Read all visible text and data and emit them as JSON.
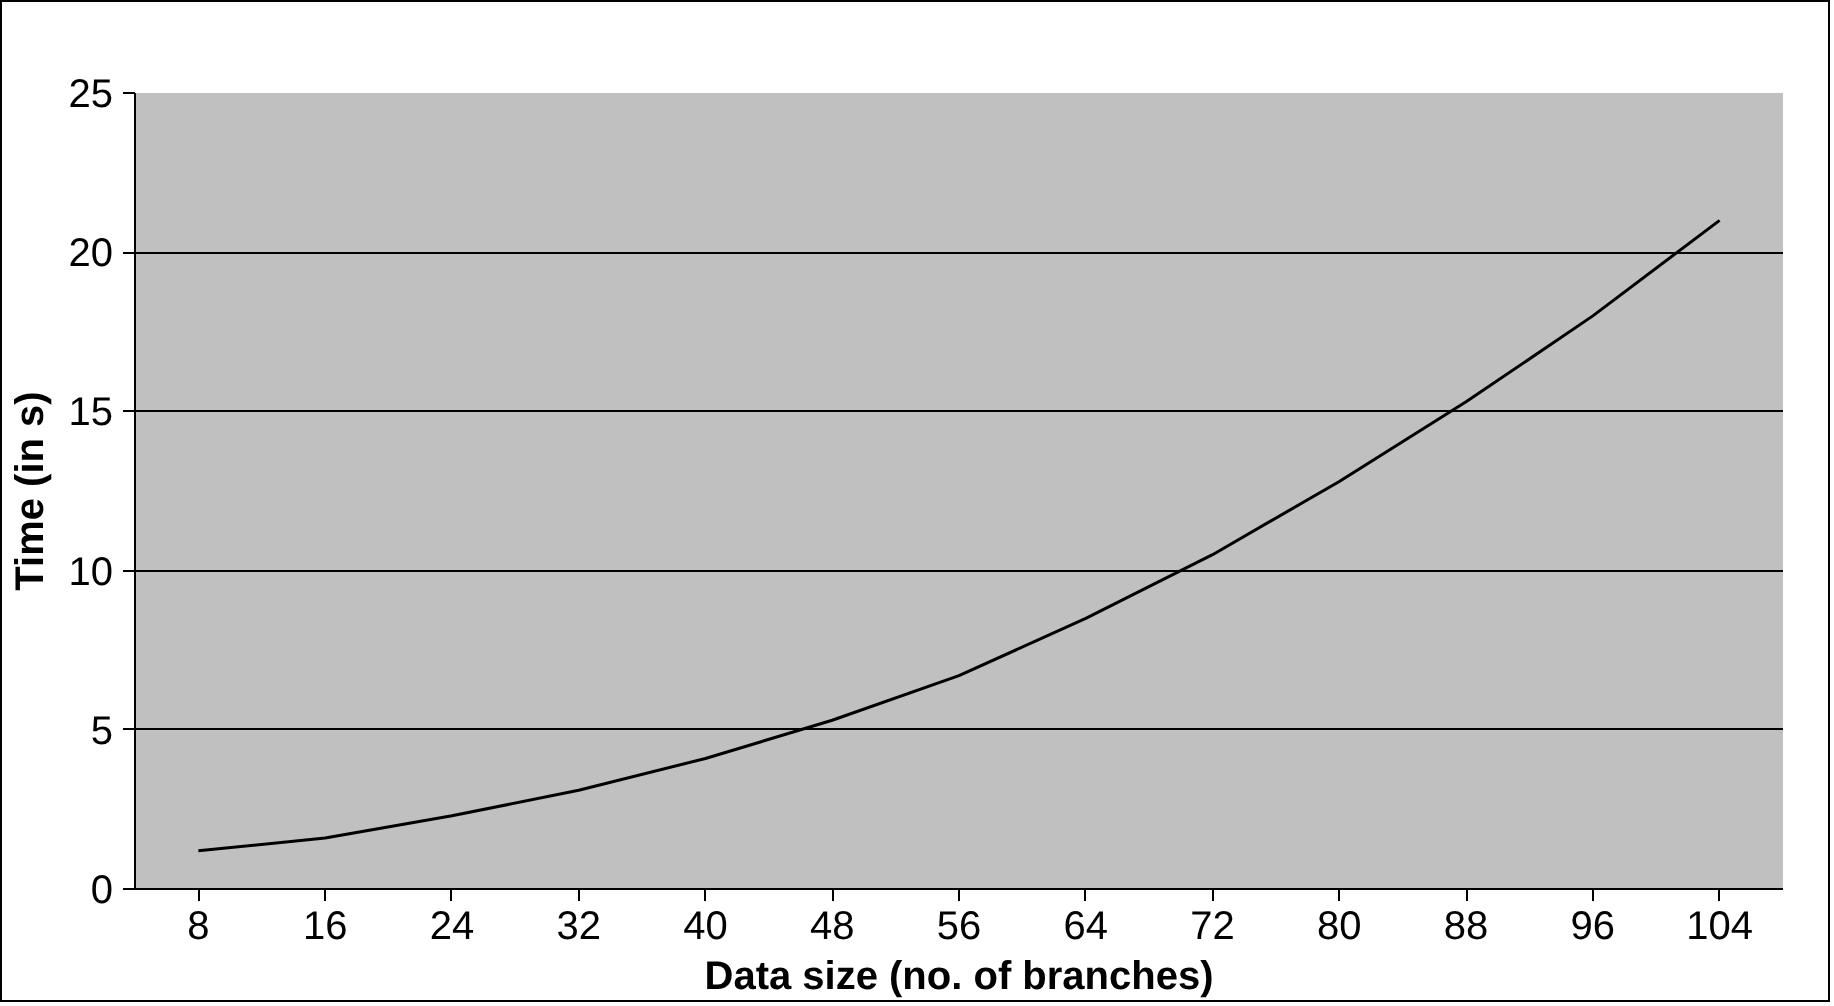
{
  "chart_data": {
    "type": "line",
    "xlabel": "Data size (no. of branches)",
    "ylabel": "Time (in s)",
    "categories": [
      "8",
      "16",
      "24",
      "32",
      "40",
      "48",
      "56",
      "64",
      "72",
      "80",
      "88",
      "96",
      "104"
    ],
    "series": [
      {
        "color": "#000000",
        "values": [
          1.2,
          1.6,
          2.3,
          3.1,
          4.1,
          5.3,
          6.7,
          8.5,
          10.5,
          12.8,
          15.3,
          18.0,
          21.0
        ]
      }
    ],
    "ylim": [
      0,
      25
    ],
    "yticks": [
      0,
      5,
      10,
      15,
      20,
      25
    ],
    "grid": "y",
    "marker": "none",
    "line_style": "solid"
  }
}
